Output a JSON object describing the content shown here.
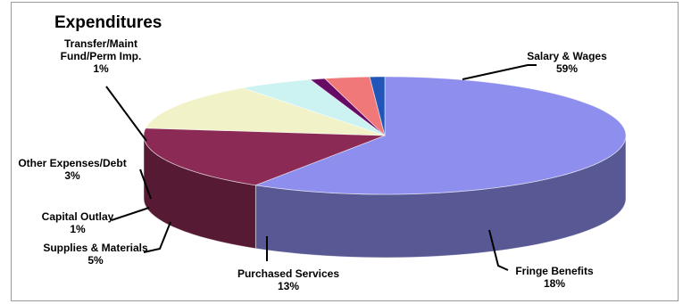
{
  "chart_data": {
    "type": "pie",
    "title": "Expenditures",
    "three_d": true,
    "labels_show_percent": true,
    "slices": [
      {
        "name": "Salary & Wages",
        "value": 59,
        "percent_label": "59%",
        "color": "#8E8EEE",
        "label_lines": [
          "Salary & Wages"
        ]
      },
      {
        "name": "Fringe Benefits",
        "value": 18,
        "percent_label": "18%",
        "color": "#8A2A55",
        "label_lines": [
          "Fringe Benefits"
        ]
      },
      {
        "name": "Purchased Services",
        "value": 13,
        "percent_label": "13%",
        "color": "#F2F2C8",
        "label_lines": [
          "Purchased Services"
        ]
      },
      {
        "name": "Supplies & Materials",
        "value": 5,
        "percent_label": "5%",
        "color": "#CCF2F2",
        "label_lines": [
          "Supplies & Materials"
        ]
      },
      {
        "name": "Capital Outlay",
        "value": 1,
        "percent_label": "1%",
        "color": "#660A66",
        "label_lines": [
          "Capital Outlay"
        ]
      },
      {
        "name": "Other Expenses/Debt",
        "value": 3,
        "percent_label": "3%",
        "color": "#F07878",
        "label_lines": [
          "Other Expenses/Debt"
        ]
      },
      {
        "name": "Transfer/Maint Fund/Perm Imp.",
        "value": 1,
        "percent_label": "1%",
        "color": "#2255B8",
        "label_lines": [
          "Transfer/Maint",
          "Fund/Perm Imp."
        ]
      }
    ]
  }
}
